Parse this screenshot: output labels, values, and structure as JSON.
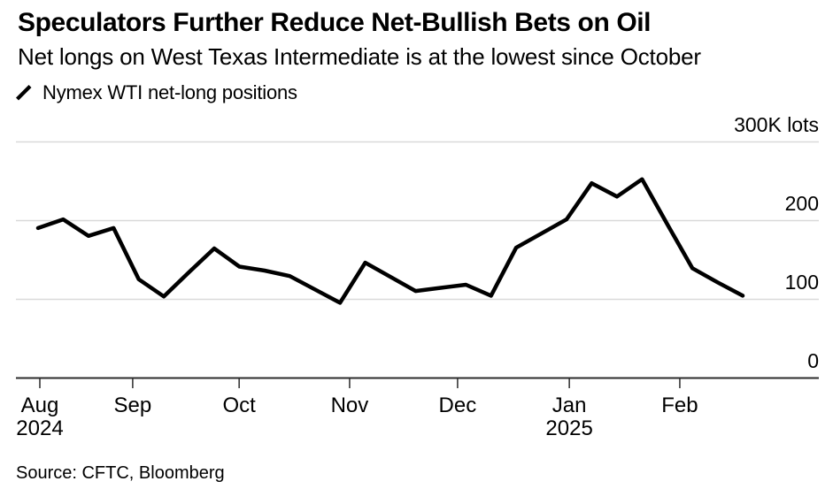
{
  "header": {
    "title": "Speculators Further Reduce Net-Bullish Bets on Oil",
    "subtitle": "Net longs on West Texas Intermediate is at the lowest since October"
  },
  "legend": {
    "series_label": "Nymex WTI net-long positions",
    "line_color": "#000000"
  },
  "source": "Source: CFTC, Bloomberg",
  "chart_data": {
    "type": "line",
    "title": "Nymex WTI net-long positions",
    "unit_label": "K lots",
    "ylim": [
      0,
      300
    ],
    "grid": "horizontal",
    "legend_position": "top-left",
    "colors": {
      "line": "#000000",
      "gridline": "#d9d9d9",
      "axis": "#2b2b2b",
      "text": "#000000"
    },
    "y_ticks": [
      {
        "value": 300,
        "label": "300K lots"
      },
      {
        "value": 200,
        "label": "200"
      },
      {
        "value": 100,
        "label": "100"
      },
      {
        "value": 0,
        "label": "0"
      }
    ],
    "x_ticks": [
      {
        "label": "Aug",
        "sublabel": "2024",
        "week": 0.07
      },
      {
        "label": "Sep",
        "sublabel": "",
        "week": 3.76
      },
      {
        "label": "Oct",
        "sublabel": "",
        "week": 7.99
      },
      {
        "label": "Nov",
        "sublabel": "",
        "week": 12.38
      },
      {
        "label": "Dec",
        "sublabel": "",
        "week": 16.67
      },
      {
        "label": "Jan",
        "sublabel": "2025",
        "week": 21.11
      },
      {
        "label": "Feb",
        "sublabel": "",
        "week": 25.5
      }
    ],
    "series": [
      {
        "name": "Nymex WTI net-long positions",
        "x_unit": "week_index",
        "values": [
          190,
          201,
          180,
          190,
          125,
          103,
          134,
          164,
          141,
          136,
          129,
          112,
          95,
          146,
          128,
          110,
          114,
          118,
          104,
          165,
          183,
          201,
          247,
          230,
          252,
          195,
          139,
          121,
          104
        ]
      }
    ]
  }
}
